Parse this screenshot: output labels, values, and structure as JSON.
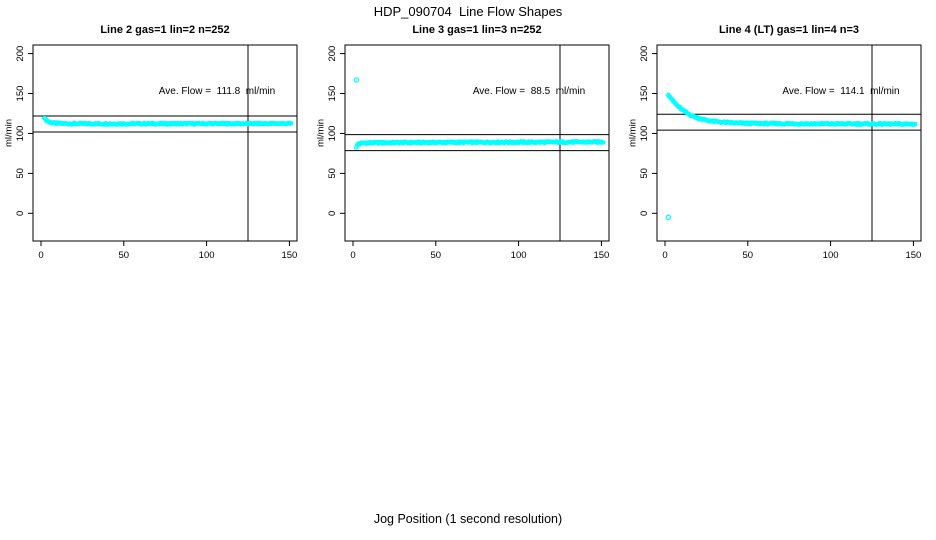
{
  "figure": {
    "title": "HDP_090704  Line Flow Shapes",
    "xlabel": "Jog Position (1 second resolution)",
    "background_color": "#FFFFFF",
    "point_color": "#00FFFF",
    "line_color": "#000000"
  },
  "chart_data": [
    {
      "type": "scatter",
      "title": "Line 2 gas=1 lin=2 n=252",
      "annotation": "Ave. Flow =  111.8  ml/min",
      "ave_flow_ml_min": 111.8,
      "n": 252,
      "ylabel": "ml/min",
      "x_ticks": [
        0,
        50,
        100,
        150
      ],
      "y_ticks": [
        0,
        50,
        100,
        150,
        200
      ],
      "xlim": [
        0,
        150
      ],
      "ylim": [
        0,
        200
      ],
      "ref_lines_h": [
        121.8,
        101.8
      ],
      "ref_lines_v": [
        125
      ],
      "series_profile": [
        [
          2,
          120
        ],
        [
          3,
          117
        ],
        [
          4,
          115.5
        ],
        [
          5,
          114.3
        ],
        [
          6,
          113.6
        ],
        [
          8,
          113
        ],
        [
          10,
          112.7
        ],
        [
          14,
          112.4
        ],
        [
          20,
          112.2
        ],
        [
          40,
          112.1
        ],
        [
          70,
          112.2
        ],
        [
          100,
          112.3
        ],
        [
          125,
          112.3
        ],
        [
          151,
          112.4
        ]
      ],
      "n_points": 250,
      "x_start": 2,
      "x_end": 151,
      "noise_amplitude": 0.9,
      "outliers": []
    },
    {
      "type": "scatter",
      "title": "Line 3 gas=1 lin=3 n=252",
      "annotation": "Ave. Flow =  88.5  ml/min",
      "ave_flow_ml_min": 88.5,
      "n": 252,
      "ylabel": "ml/min",
      "x_ticks": [
        0,
        50,
        100,
        150
      ],
      "y_ticks": [
        0,
        50,
        100,
        150,
        200
      ],
      "xlim": [
        0,
        150
      ],
      "ylim": [
        0,
        200
      ],
      "ref_lines_h": [
        98.5,
        78.5
      ],
      "ref_lines_v": [
        125
      ],
      "series_profile": [
        [
          2,
          83
        ],
        [
          3,
          86.8
        ],
        [
          4,
          87.6
        ],
        [
          6,
          88
        ],
        [
          10,
          88.3
        ],
        [
          20,
          88.5
        ],
        [
          40,
          88.7
        ],
        [
          70,
          88.9
        ],
        [
          100,
          89
        ],
        [
          130,
          89.2
        ],
        [
          151,
          89.3
        ]
      ],
      "n_points": 250,
      "x_start": 2,
      "x_end": 151,
      "noise_amplitude": 0.9,
      "outliers": [
        [
          2,
          167
        ]
      ]
    },
    {
      "type": "scatter",
      "title": "Line 4 (LT) gas=1 lin=4 n=3",
      "annotation": "Ave. Flow =  114.1  ml/min",
      "ave_flow_ml_min": 114.1,
      "n": 3,
      "ylabel": "ml/min",
      "x_ticks": [
        0,
        50,
        100,
        150
      ],
      "y_ticks": [
        0,
        50,
        100,
        150,
        200
      ],
      "xlim": [
        0,
        150
      ],
      "ylim": [
        0,
        200
      ],
      "ref_lines_h": [
        124.1,
        104.1
      ],
      "ref_lines_v": [
        125
      ],
      "series_profile": [
        [
          2,
          149
        ],
        [
          3,
          146
        ],
        [
          4,
          143
        ],
        [
          5,
          140.4
        ],
        [
          6,
          138
        ],
        [
          7,
          135.8
        ],
        [
          8,
          133.8
        ],
        [
          9,
          132
        ],
        [
          10,
          130.3
        ],
        [
          12,
          127.3
        ],
        [
          14,
          124.7
        ],
        [
          16,
          122.6
        ],
        [
          18,
          120.8
        ],
        [
          20,
          119.3
        ],
        [
          23,
          117.5
        ],
        [
          26,
          116.2
        ],
        [
          30,
          115
        ],
        [
          35,
          114
        ],
        [
          42,
          113.2
        ],
        [
          50,
          112.7
        ],
        [
          65,
          112.3
        ],
        [
          85,
          112.1
        ],
        [
          110,
          112
        ],
        [
          130,
          111.9
        ],
        [
          151,
          111.7
        ]
      ],
      "n_points": 250,
      "x_start": 2,
      "x_end": 151,
      "noise_amplitude": 0.9,
      "outliers": [
        [
          2,
          -5
        ]
      ]
    }
  ]
}
